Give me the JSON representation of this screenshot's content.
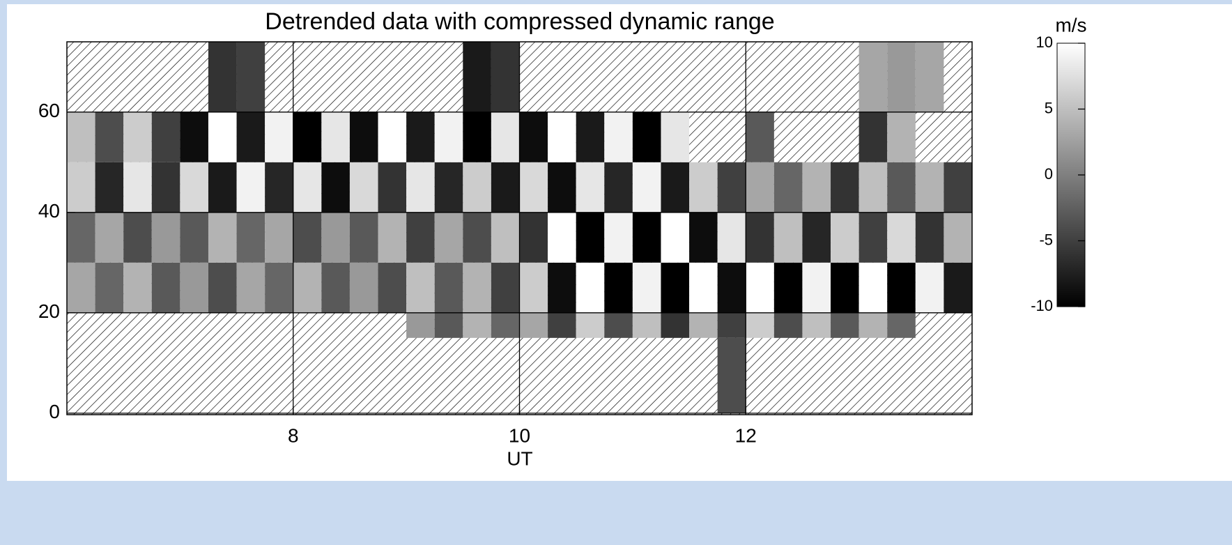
{
  "chart_data": {
    "type": "heatmap",
    "title": "Detrended data with compressed dynamic range",
    "xlabel": "UT",
    "xlim": [
      6,
      14
    ],
    "xticks": [
      8,
      10,
      12
    ],
    "ylim": [
      -0.3,
      74
    ],
    "yticks": [
      0,
      20,
      40,
      60
    ],
    "grid": true,
    "colorbar_label": "m/s",
    "clim": [
      -10,
      10
    ],
    "cticks": [
      -10,
      -5,
      0,
      5,
      10
    ],
    "xbins": [
      6,
      6.25,
      6.5,
      6.75,
      7,
      7.25,
      7.5,
      7.75,
      8,
      8.25,
      8.5,
      8.75,
      9,
      9.25,
      9.5,
      9.75,
      10,
      10.25,
      10.5,
      10.75,
      11,
      11.25,
      11.5,
      11.75,
      12,
      12.25,
      12.5,
      12.75,
      13,
      13.25,
      13.5,
      13.75,
      14
    ],
    "ybins": [
      0,
      15,
      20,
      30,
      40,
      50,
      60,
      74
    ],
    "z": [
      [
        null,
        null,
        null,
        null,
        null,
        null,
        null,
        null,
        null,
        null,
        null,
        null,
        null,
        null,
        null,
        null,
        null,
        null,
        null,
        null,
        null,
        null,
        null,
        -4,
        null,
        null,
        null,
        null,
        null,
        null,
        null,
        null
      ],
      [
        null,
        null,
        null,
        null,
        null,
        null,
        null,
        null,
        null,
        null,
        null,
        null,
        2,
        -3,
        4,
        -2,
        3,
        -5,
        6,
        -4,
        5,
        -6,
        4,
        -5,
        6,
        -4,
        5,
        -3,
        4,
        -2,
        null,
        null
      ],
      [
        3,
        -2,
        4,
        -3,
        2,
        -4,
        3,
        -2,
        4,
        -3,
        2,
        -4,
        5,
        -3,
        4,
        -5,
        6,
        -9,
        10,
        -10,
        9,
        -10,
        10,
        -9,
        10,
        -10,
        9,
        -10,
        10,
        -10,
        9,
        -8
      ],
      [
        -2,
        3,
        -4,
        2,
        -3,
        4,
        -2,
        3,
        -4,
        2,
        -3,
        4,
        -5,
        3,
        -4,
        5,
        -6,
        10,
        -10,
        9,
        -10,
        10,
        -9,
        8,
        -6,
        5,
        -7,
        6,
        -5,
        7,
        -6,
        4
      ],
      [
        6,
        -7,
        8,
        -6,
        7,
        -8,
        9,
        -7,
        8,
        -9,
        7,
        -6,
        8,
        -7,
        6,
        -8,
        7,
        -9,
        8,
        -7,
        9,
        -8,
        6,
        -5,
        3,
        -2,
        4,
        -6,
        5,
        -3,
        4,
        -5
      ],
      [
        5,
        -4,
        6,
        -5,
        -9,
        10,
        -8,
        9,
        -10,
        8,
        -9,
        10,
        -8,
        9,
        -10,
        8,
        -9,
        10,
        -8,
        9,
        -10,
        8,
        null,
        null,
        -3,
        null,
        null,
        null,
        -6,
        4,
        null,
        null
      ],
      [
        null,
        null,
        null,
        null,
        null,
        -6,
        -5,
        null,
        null,
        null,
        null,
        null,
        null,
        null,
        -8,
        -6,
        null,
        null,
        null,
        null,
        null,
        null,
        null,
        null,
        null,
        null,
        null,
        null,
        3,
        2,
        3,
        null
      ]
    ]
  }
}
